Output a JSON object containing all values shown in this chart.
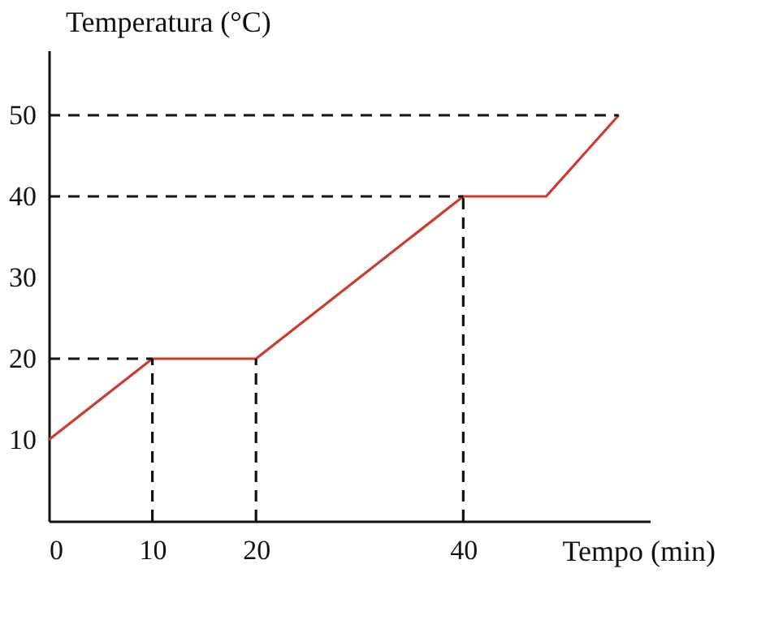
{
  "chart_data": {
    "type": "line",
    "xlabel": "Tempo (min)",
    "ylabel": "Temperatura (°C)",
    "xlim": [
      0,
      58
    ],
    "xticks": [
      0,
      10,
      20,
      40
    ],
    "ylim": [
      0,
      58
    ],
    "yticks": [
      10,
      20,
      30,
      40,
      50
    ],
    "grid": false,
    "marker": "none",
    "series": [
      {
        "color": "#cc3b2e",
        "line_style": "solid",
        "x": [
          0,
          10,
          20,
          40,
          48,
          55
        ],
        "values": [
          10,
          20,
          20,
          40,
          40,
          50
        ]
      },
      {
        "color": "#111111",
        "line_style": "dashed",
        "x": [
          0,
          10
        ],
        "values": [
          20,
          20
        ]
      },
      {
        "color": "#111111",
        "line_style": "dashed",
        "x": [
          10,
          10
        ],
        "values": [
          0,
          20
        ]
      },
      {
        "color": "#111111",
        "line_style": "dashed",
        "x": [
          20,
          20
        ],
        "values": [
          0,
          20
        ]
      },
      {
        "color": "#111111",
        "line_style": "dashed",
        "x": [
          0,
          40
        ],
        "values": [
          40,
          40
        ]
      },
      {
        "color": "#111111",
        "line_style": "dashed",
        "x": [
          40,
          40
        ],
        "values": [
          0,
          40
        ]
      },
      {
        "color": "#111111",
        "line_style": "dashed",
        "x": [
          0,
          55
        ],
        "values": [
          50,
          50
        ]
      }
    ]
  }
}
